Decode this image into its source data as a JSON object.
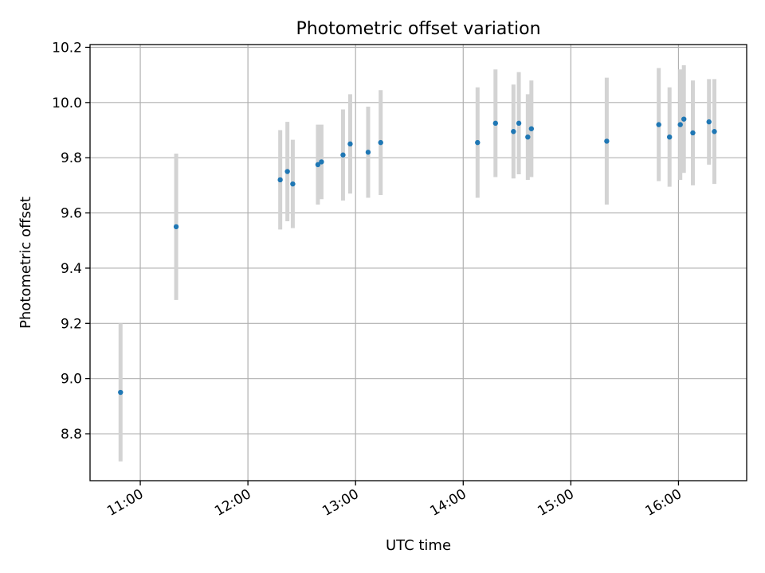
{
  "chart_data": {
    "type": "scatter",
    "title": "Photometric offset variation",
    "xlabel": "UTC time",
    "ylabel": "Photometric offset",
    "x_format": "time-of-day (HH:MM, UTC)",
    "xlim": [
      "10:32",
      "16:38"
    ],
    "ylim": [
      8.63,
      10.21
    ],
    "x_ticks": [
      "11:00",
      "12:00",
      "13:00",
      "14:00",
      "15:00",
      "16:00"
    ],
    "y_ticks": [
      8.8,
      9.0,
      9.2,
      9.4,
      9.6,
      9.8,
      10.0,
      10.2
    ],
    "y_tick_labels": [
      "8.8",
      "9.0",
      "9.2",
      "9.4",
      "9.6",
      "9.8",
      "10.0",
      "10.2"
    ],
    "grid": true,
    "marker_color": "#1f77b4",
    "errorbar_color": "#d3d3d3",
    "points": [
      {
        "x": "10:49",
        "y": 8.95,
        "err": 0.25
      },
      {
        "x": "11:20",
        "y": 9.55,
        "err": 0.265
      },
      {
        "x": "12:18",
        "y": 9.72,
        "err": 0.18
      },
      {
        "x": "12:22",
        "y": 9.75,
        "err": 0.18
      },
      {
        "x": "12:25",
        "y": 9.705,
        "err": 0.16
      },
      {
        "x": "12:39",
        "y": 9.775,
        "err": 0.145
      },
      {
        "x": "12:41",
        "y": 9.785,
        "err": 0.135
      },
      {
        "x": "12:53",
        "y": 9.81,
        "err": 0.165
      },
      {
        "x": "12:57",
        "y": 9.85,
        "err": 0.18
      },
      {
        "x": "13:07",
        "y": 9.82,
        "err": 0.165
      },
      {
        "x": "13:14",
        "y": 9.855,
        "err": 0.19
      },
      {
        "x": "14:08",
        "y": 9.855,
        "err": 0.2
      },
      {
        "x": "14:18",
        "y": 9.925,
        "err": 0.195
      },
      {
        "x": "14:28",
        "y": 9.895,
        "err": 0.17
      },
      {
        "x": "14:31",
        "y": 9.925,
        "err": 0.185
      },
      {
        "x": "14:36",
        "y": 9.875,
        "err": 0.155
      },
      {
        "x": "14:38",
        "y": 9.905,
        "err": 0.175
      },
      {
        "x": "15:20",
        "y": 9.86,
        "err": 0.23
      },
      {
        "x": "15:49",
        "y": 9.92,
        "err": 0.205
      },
      {
        "x": "15:55",
        "y": 9.875,
        "err": 0.18
      },
      {
        "x": "16:01",
        "y": 9.92,
        "err": 0.2
      },
      {
        "x": "16:03",
        "y": 9.94,
        "err": 0.195
      },
      {
        "x": "16:08",
        "y": 9.89,
        "err": 0.19
      },
      {
        "x": "16:17",
        "y": 9.93,
        "err": 0.155
      },
      {
        "x": "16:20",
        "y": 9.895,
        "err": 0.19
      }
    ]
  }
}
